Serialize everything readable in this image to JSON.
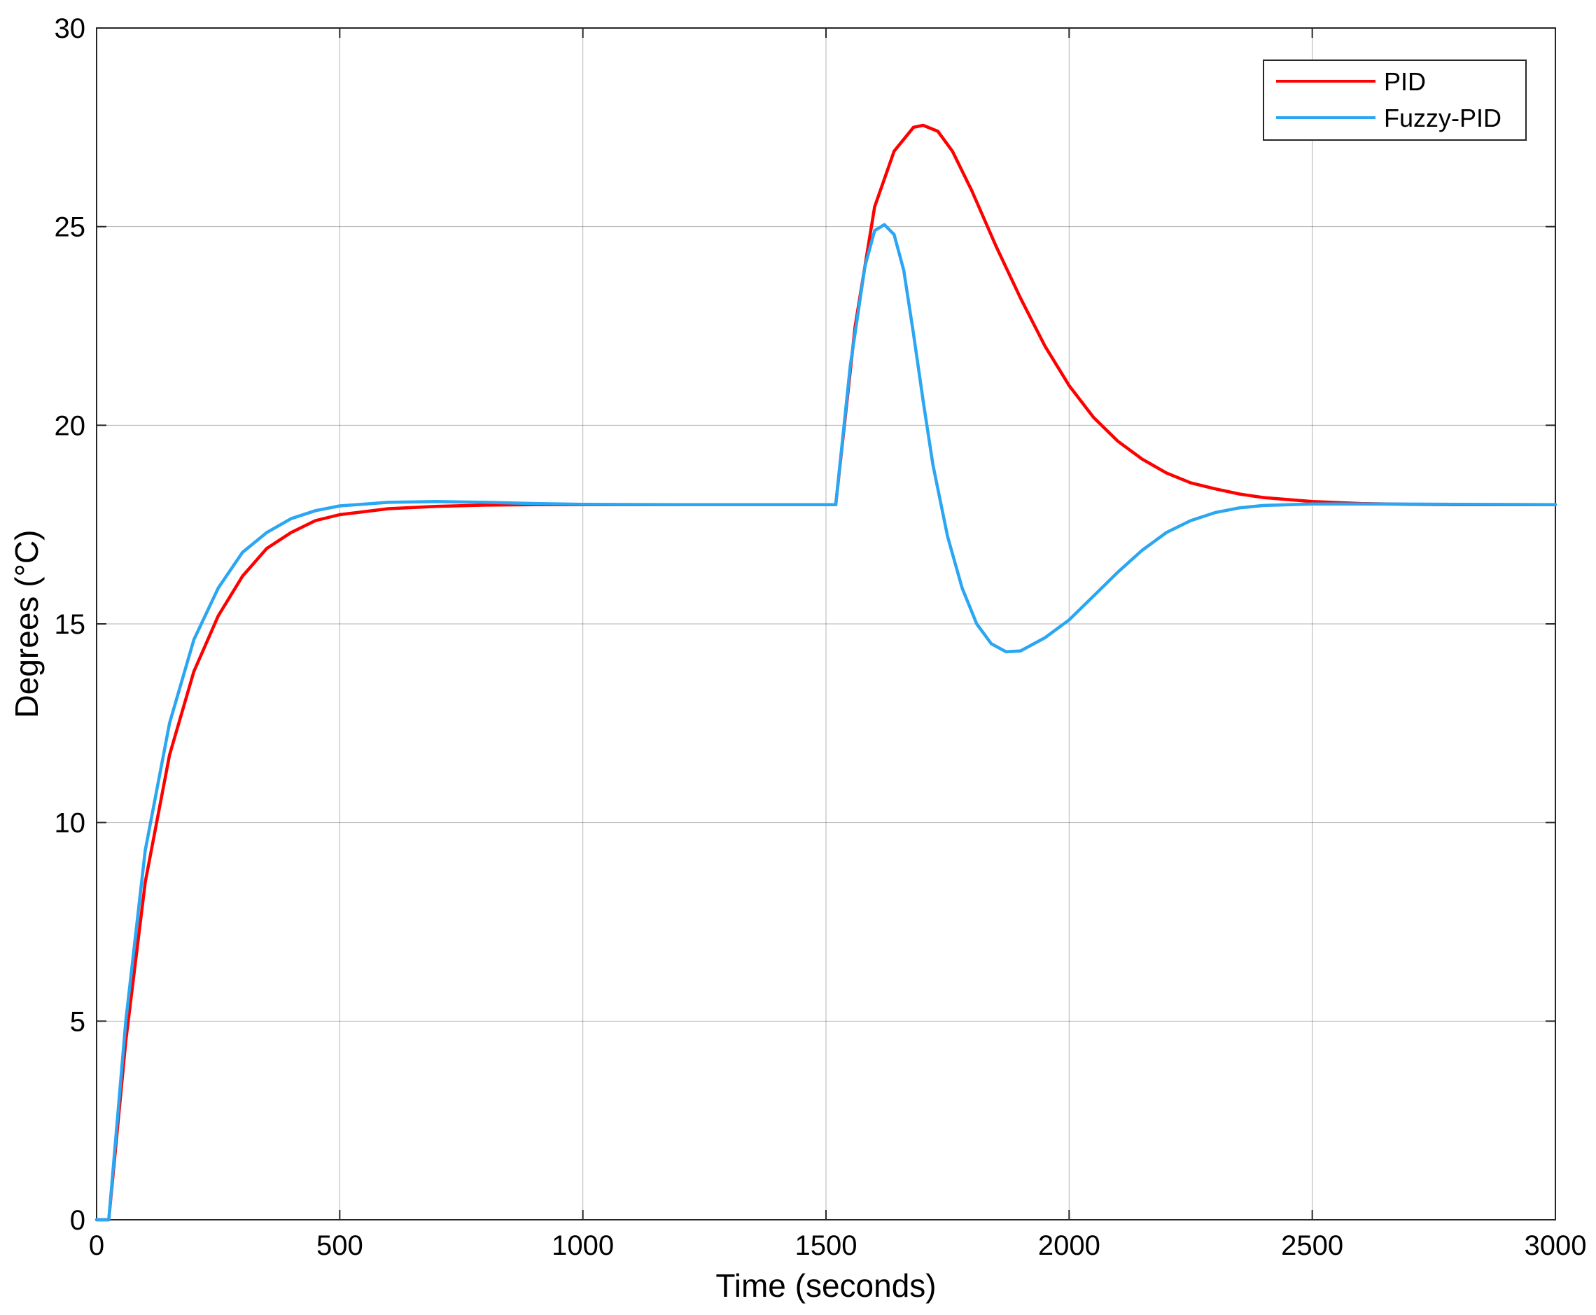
{
  "chart_data": {
    "type": "line",
    "title": "",
    "xlabel": "Time (seconds)",
    "ylabel": "Degrees (°C)",
    "xlim": [
      0,
      3000
    ],
    "ylim": [
      0,
      30
    ],
    "grid": true,
    "legend_position": "top-right",
    "x_ticks": [
      "0",
      "500",
      "1000",
      "1500",
      "2000",
      "2500",
      "3000"
    ],
    "y_ticks": [
      "0",
      "5",
      "10",
      "15",
      "20",
      "25",
      "30"
    ],
    "series": [
      {
        "name": "PID",
        "color": "#ff0000",
        "points": [
          [
            0,
            0
          ],
          [
            25,
            0
          ],
          [
            60,
            4.5
          ],
          [
            100,
            8.5
          ],
          [
            150,
            11.7
          ],
          [
            200,
            13.8
          ],
          [
            250,
            15.2
          ],
          [
            300,
            16.2
          ],
          [
            350,
            16.9
          ],
          [
            400,
            17.3
          ],
          [
            450,
            17.6
          ],
          [
            500,
            17.75
          ],
          [
            600,
            17.9
          ],
          [
            700,
            17.96
          ],
          [
            800,
            17.99
          ],
          [
            900,
            18.0
          ],
          [
            1000,
            18.0
          ],
          [
            1200,
            18.0
          ],
          [
            1400,
            18.0
          ],
          [
            1520,
            18.0
          ],
          [
            1560,
            22.5
          ],
          [
            1600,
            25.5
          ],
          [
            1640,
            26.9
          ],
          [
            1680,
            27.5
          ],
          [
            1700,
            27.55
          ],
          [
            1730,
            27.4
          ],
          [
            1760,
            26.9
          ],
          [
            1800,
            25.9
          ],
          [
            1850,
            24.5
          ],
          [
            1900,
            23.2
          ],
          [
            1950,
            22.0
          ],
          [
            2000,
            21.0
          ],
          [
            2050,
            20.2
          ],
          [
            2100,
            19.6
          ],
          [
            2150,
            19.15
          ],
          [
            2200,
            18.8
          ],
          [
            2250,
            18.55
          ],
          [
            2300,
            18.4
          ],
          [
            2350,
            18.27
          ],
          [
            2400,
            18.18
          ],
          [
            2500,
            18.08
          ],
          [
            2600,
            18.03
          ],
          [
            2700,
            18.01
          ],
          [
            2800,
            18.0
          ],
          [
            3000,
            18.0
          ]
        ]
      },
      {
        "name": "Fuzzy-PID",
        "color": "#2aa6f2",
        "points": [
          [
            0,
            0
          ],
          [
            25,
            0
          ],
          [
            60,
            5.0
          ],
          [
            100,
            9.3
          ],
          [
            150,
            12.5
          ],
          [
            200,
            14.6
          ],
          [
            250,
            15.9
          ],
          [
            300,
            16.8
          ],
          [
            350,
            17.3
          ],
          [
            400,
            17.65
          ],
          [
            450,
            17.85
          ],
          [
            500,
            17.97
          ],
          [
            600,
            18.06
          ],
          [
            700,
            18.08
          ],
          [
            800,
            18.06
          ],
          [
            900,
            18.03
          ],
          [
            1000,
            18.01
          ],
          [
            1200,
            18.0
          ],
          [
            1400,
            18.0
          ],
          [
            1520,
            18.0
          ],
          [
            1550,
            21.5
          ],
          [
            1580,
            24.0
          ],
          [
            1600,
            24.9
          ],
          [
            1620,
            25.05
          ],
          [
            1640,
            24.8
          ],
          [
            1660,
            23.9
          ],
          [
            1680,
            22.3
          ],
          [
            1700,
            20.6
          ],
          [
            1720,
            19.0
          ],
          [
            1750,
            17.2
          ],
          [
            1780,
            15.9
          ],
          [
            1810,
            15.0
          ],
          [
            1840,
            14.5
          ],
          [
            1870,
            14.3
          ],
          [
            1900,
            14.32
          ],
          [
            1950,
            14.65
          ],
          [
            2000,
            15.1
          ],
          [
            2050,
            15.7
          ],
          [
            2100,
            16.3
          ],
          [
            2150,
            16.85
          ],
          [
            2200,
            17.3
          ],
          [
            2250,
            17.6
          ],
          [
            2300,
            17.8
          ],
          [
            2350,
            17.92
          ],
          [
            2400,
            17.98
          ],
          [
            2500,
            18.02
          ],
          [
            2600,
            18.02
          ],
          [
            2800,
            18.01
          ],
          [
            3000,
            18.0
          ]
        ]
      }
    ]
  }
}
